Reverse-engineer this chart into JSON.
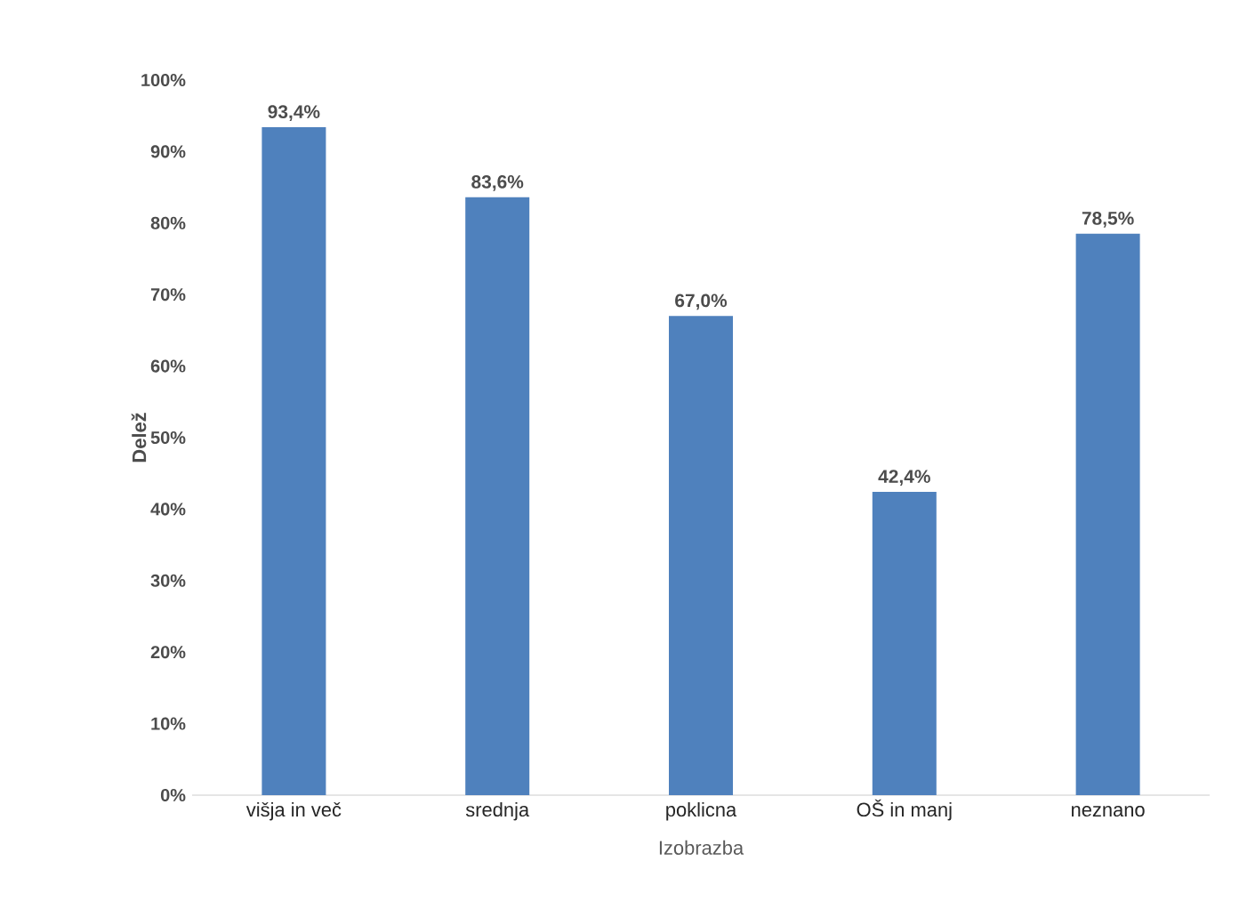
{
  "chart_data": {
    "type": "bar",
    "xlabel": "Izobrazba",
    "ylabel": "Delež",
    "categories": [
      "višja in več",
      "srednja",
      "poklicna",
      "OŠ in manj",
      "neznano"
    ],
    "values": [
      93.4,
      83.6,
      67.0,
      42.4,
      78.5
    ],
    "value_labels": [
      "93,4%",
      "83,6%",
      "67,0%",
      "42,4%",
      "78,5%"
    ],
    "color": "#4f81bd",
    "ylim": [
      0,
      100
    ],
    "yticks": [
      {
        "value": 0,
        "label": "0%"
      },
      {
        "value": 10,
        "label": "10%"
      },
      {
        "value": 20,
        "label": "20%"
      },
      {
        "value": 30,
        "label": "30%"
      },
      {
        "value": 40,
        "label": "40%"
      },
      {
        "value": 50,
        "label": "50%"
      },
      {
        "value": 60,
        "label": "60%"
      },
      {
        "value": 70,
        "label": "70%"
      },
      {
        "value": 80,
        "label": "80%"
      },
      {
        "value": 90,
        "label": "90%"
      },
      {
        "value": 100,
        "label": "100%"
      }
    ]
  }
}
